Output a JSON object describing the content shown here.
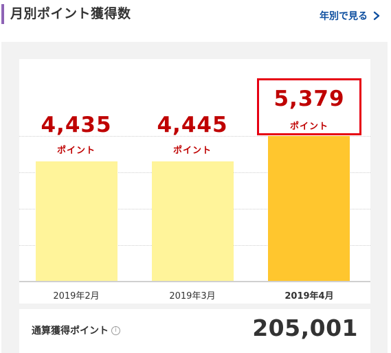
{
  "header": {
    "title": "月別ポイント獲得数",
    "yearly_link": "年別で見る"
  },
  "chart": {
    "unit": "ポイント",
    "bars": [
      {
        "month": "2019年2月",
        "value": "4,435",
        "current": false
      },
      {
        "month": "2019年3月",
        "value": "4,445",
        "current": false
      },
      {
        "month": "2019年4月",
        "value": "5,379",
        "current": true
      }
    ]
  },
  "chart_data": {
    "type": "bar",
    "categories": [
      "2019年2月",
      "2019年3月",
      "2019年4月"
    ],
    "values": [
      4435,
      4445,
      5379
    ],
    "ylabel": "ポイント",
    "ylim": [
      0,
      5800
    ],
    "grid": true,
    "colors": {
      "normal": "#fff49a",
      "current": "#ffc62e",
      "value_text": "#bf0000",
      "highlight": "#e60012"
    }
  },
  "summary": {
    "label": "通算獲得ポイント",
    "info_symbol": "i",
    "total": "205,001"
  }
}
